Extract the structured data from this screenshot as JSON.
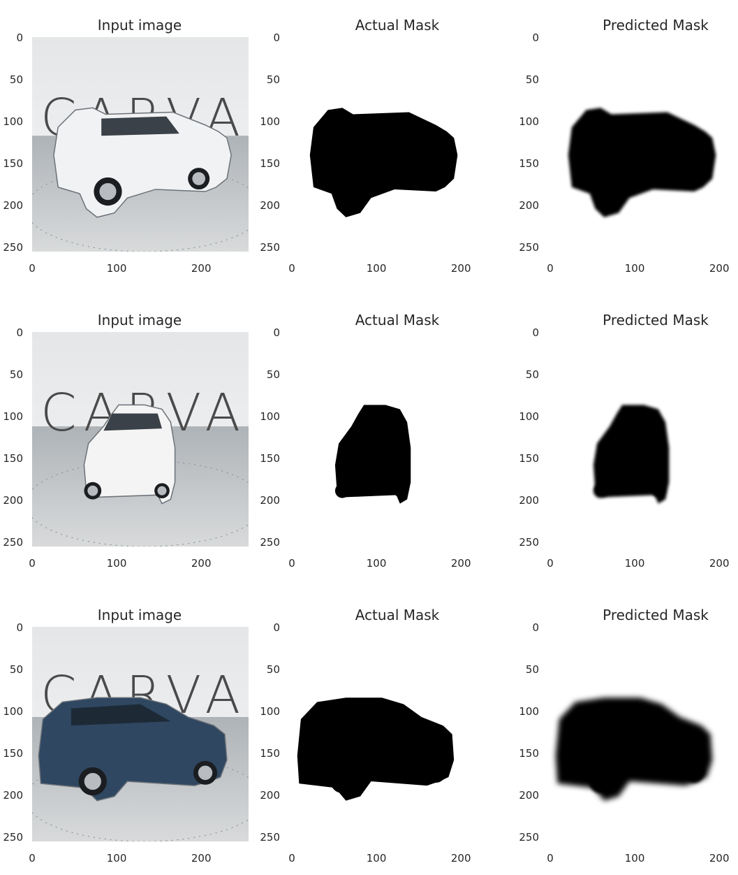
{
  "figure": {
    "rows": [
      {
        "panels": [
          {
            "title": "Input image",
            "kind": "photo",
            "car_color": "#f1f2f3",
            "view": "rear-three-quarter-left",
            "watermark": "CARVANA"
          },
          {
            "title": "Actual Mask",
            "kind": "mask-sharp"
          },
          {
            "title": "Predicted Mask",
            "kind": "mask-blurred"
          }
        ]
      },
      {
        "panels": [
          {
            "title": "Input image",
            "kind": "photo",
            "car_color": "#f4f4f4",
            "view": "front-three-quarter",
            "watermark": "CARVANA"
          },
          {
            "title": "Actual Mask",
            "kind": "mask-sharp"
          },
          {
            "title": "Predicted Mask",
            "kind": "mask-blurred"
          }
        ]
      },
      {
        "panels": [
          {
            "title": "Input image",
            "kind": "photo",
            "car_color": "#2f4761",
            "view": "side-left",
            "watermark": "CARVANA"
          },
          {
            "title": "Actual Mask",
            "kind": "mask-sharp"
          },
          {
            "title": "Predicted Mask",
            "kind": "mask-blurred"
          }
        ]
      }
    ],
    "axes": {
      "input_xticks": [
        "0",
        "100",
        "200"
      ],
      "mask_xticks": [
        "0",
        "100",
        "200"
      ],
      "yticks": [
        "0",
        "50",
        "100",
        "150",
        "200",
        "250"
      ]
    },
    "colors": {
      "mask": "#000000",
      "background": "#ffffff",
      "text": "#262626",
      "floor": "#b9bdc1",
      "wall": "#eceeef",
      "watermark": "#4a4a4a"
    }
  }
}
